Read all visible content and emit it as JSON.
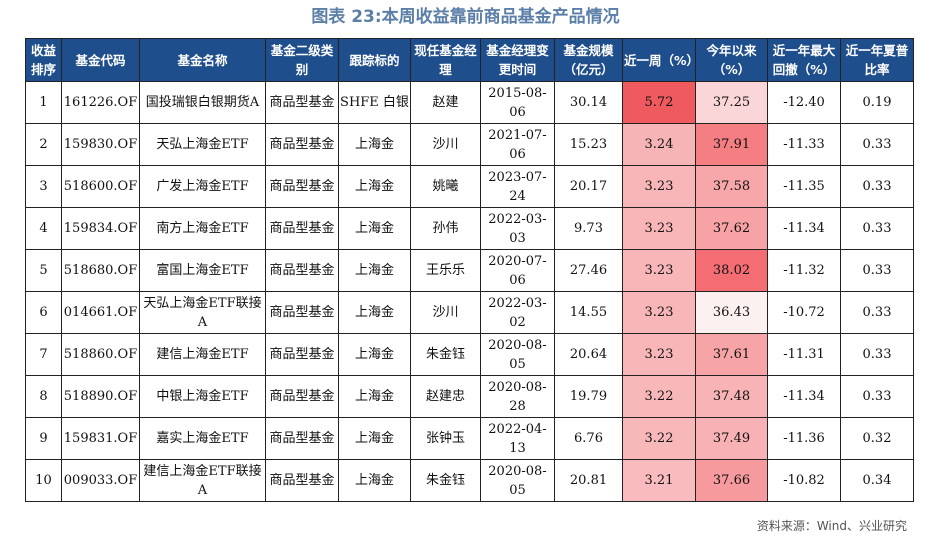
{
  "title": "图表 23:本周收益靠前商品基金产品情况",
  "header": [
    "收益排序",
    "基金代码",
    "基金名称",
    "基金二级类别",
    "跟踪标的",
    "现任基金经理",
    "基金经理变更时间",
    "基金规模（亿元）",
    "近一周（%）",
    "今年以来（%）",
    "近一年最大回撤（%）",
    "近一年夏普比率"
  ],
  "rows": [
    [
      "1",
      "161226.OF",
      "国投瑞银白银期货A",
      "商品型基金",
      "SHFE 白银",
      "赵建",
      "2015-08-06",
      "30.14",
      "5.72",
      "37.25",
      "-12.40",
      "0.19"
    ],
    [
      "2",
      "159830.OF",
      "天弘上海金ETF",
      "商品型基金",
      "上海金",
      "沙川",
      "2021-07-06",
      "15.23",
      "3.24",
      "37.91",
      "-11.33",
      "0.33"
    ],
    [
      "3",
      "518600.OF",
      "广发上海金ETF",
      "商品型基金",
      "上海金",
      "姚曦",
      "2023-07-24",
      "20.17",
      "3.23",
      "37.58",
      "-11.35",
      "0.33"
    ],
    [
      "4",
      "159834.OF",
      "南方上海金ETF",
      "商品型基金",
      "上海金",
      "孙伟",
      "2022-03-03",
      "9.73",
      "3.23",
      "37.62",
      "-11.34",
      "0.33"
    ],
    [
      "5",
      "518680.OF",
      "富国上海金ETF",
      "商品型基金",
      "上海金",
      "王乐乐",
      "2020-07-06",
      "27.46",
      "3.23",
      "38.02",
      "-11.32",
      "0.33"
    ],
    [
      "6",
      "014661.OF",
      "天弘上海金ETF联接A",
      "商品型基金",
      "上海金",
      "沙川",
      "2022-03-02",
      "14.55",
      "3.23",
      "36.43",
      "-10.72",
      "0.33"
    ],
    [
      "7",
      "518860.OF",
      "建信上海金ETF",
      "商品型基金",
      "上海金",
      "朱金钰",
      "2020-08-05",
      "20.64",
      "3.23",
      "37.61",
      "-11.31",
      "0.33"
    ],
    [
      "8",
      "518890.OF",
      "中银上海金ETF",
      "商品型基金",
      "上海金",
      "赵建忠",
      "2020-08-28",
      "19.79",
      "3.22",
      "37.48",
      "-11.34",
      "0.33"
    ],
    [
      "9",
      "159831.OF",
      "嘉实上海金ETF",
      "商品型基金",
      "上海金",
      "张钟玉",
      "2022-04-13",
      "6.76",
      "3.22",
      "37.49",
      "-11.36",
      "0.32"
    ],
    [
      "10",
      "009033.OF",
      "建信上海金ETF联接A",
      "商品型基金",
      "上海金",
      "朱金钰",
      "2020-08-05",
      "20.81",
      "3.21",
      "37.66",
      "-10.82",
      "0.34"
    ]
  ],
  "heat": {
    "col8_colors": [
      "#ef5a5f",
      "#f7b4b6",
      "#f8b6b8",
      "#f8b6b8",
      "#f8b6b8",
      "#f8b6b8",
      "#f8b6b8",
      "#f8b8ba",
      "#f8b8ba",
      "#f9bbbd"
    ],
    "col9_colors": [
      "#fbd6d8",
      "#f47e82",
      "#f7a7aa",
      "#f7a3a6",
      "#f36d72",
      "#fdf0f0",
      "#f7a4a7",
      "#f8b3b6",
      "#f8b2b5",
      "#f69a9d"
    ]
  },
  "source": "资料来源：Wind、兴业研究"
}
